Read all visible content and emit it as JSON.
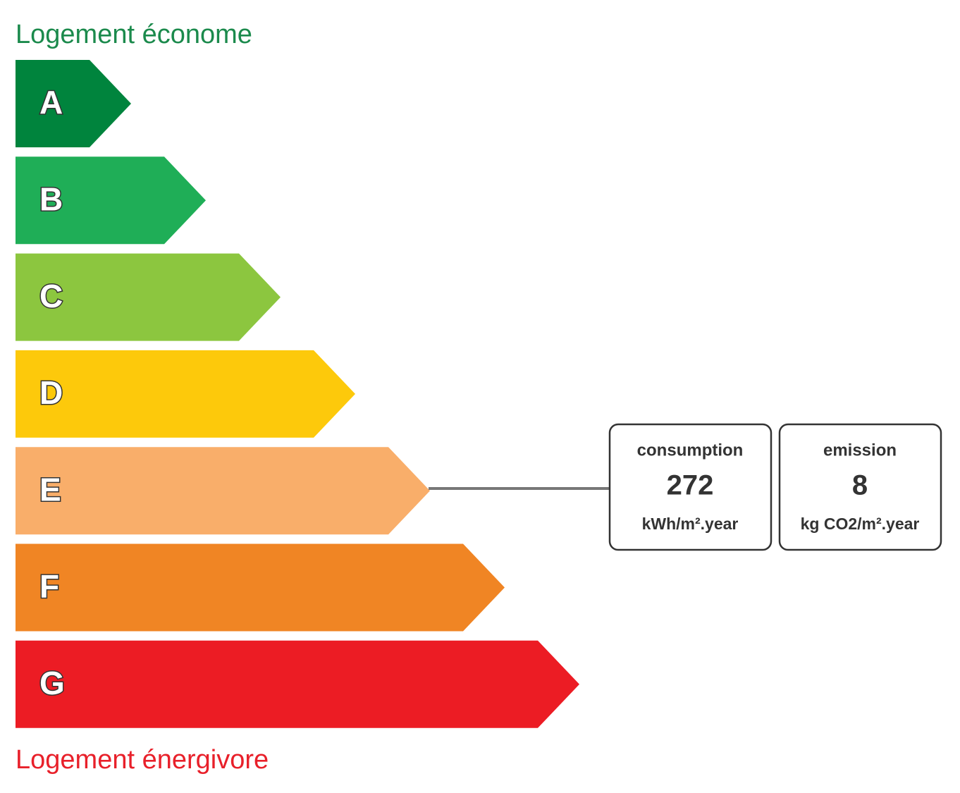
{
  "header": {
    "title": "Logement économe"
  },
  "classes": [
    "A",
    "B",
    "C",
    "D",
    "E",
    "F",
    "G"
  ],
  "footer": {
    "title": "Logement énergivore"
  },
  "indicators": [
    {
      "label": "consumption",
      "value": 272,
      "unit": "kWh/m².year"
    },
    {
      "label": "emission",
      "value": 8,
      "unit": "kg CO2/m².year"
    }
  ]
}
